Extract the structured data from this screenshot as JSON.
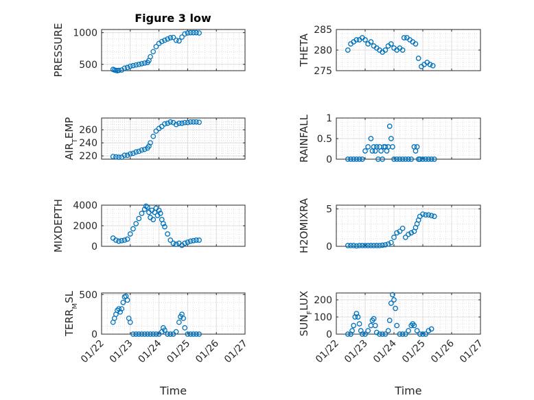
{
  "figure": {
    "title": "Figure 3 low",
    "marker_color": "#0072BD"
  },
  "chart_data": [
    {
      "type": "scatter",
      "ylabel": "PRESSURE",
      "ylim": [
        400,
        1050
      ],
      "yticks": [
        500,
        1000
      ],
      "xlim": [
        "01/22",
        "01/27"
      ],
      "grid": true,
      "points": [
        [
          0.4,
          420
        ],
        [
          0.45,
          410
        ],
        [
          0.5,
          405
        ],
        [
          0.55,
          400
        ],
        [
          0.6,
          405
        ],
        [
          0.7,
          410
        ],
        [
          0.8,
          440
        ],
        [
          0.9,
          450
        ],
        [
          1.0,
          470
        ],
        [
          1.1,
          480
        ],
        [
          1.2,
          490
        ],
        [
          1.3,
          500
        ],
        [
          1.4,
          510
        ],
        [
          1.5,
          520
        ],
        [
          1.6,
          530
        ],
        [
          1.65,
          560
        ],
        [
          1.7,
          620
        ],
        [
          1.8,
          700
        ],
        [
          1.9,
          780
        ],
        [
          2.0,
          830
        ],
        [
          2.1,
          860
        ],
        [
          2.2,
          880
        ],
        [
          2.3,
          900
        ],
        [
          2.4,
          920
        ],
        [
          2.5,
          925
        ],
        [
          2.6,
          880
        ],
        [
          2.7,
          870
        ],
        [
          2.8,
          930
        ],
        [
          2.9,
          980
        ],
        [
          3.0,
          995
        ],
        [
          3.1,
          1000
        ],
        [
          3.2,
          1000
        ],
        [
          3.3,
          1000
        ],
        [
          3.4,
          995
        ]
      ]
    },
    {
      "type": "scatter",
      "ylabel": "THETA",
      "ylim": [
        275,
        285
      ],
      "yticks": [
        275,
        280,
        285
      ],
      "xlim": [
        "01/22",
        "01/27"
      ],
      "grid": true,
      "points": [
        [
          0.4,
          280
        ],
        [
          0.5,
          281.5
        ],
        [
          0.6,
          282
        ],
        [
          0.7,
          282.5
        ],
        [
          0.8,
          282.5
        ],
        [
          0.9,
          283
        ],
        [
          1.0,
          282.5
        ],
        [
          1.1,
          281.5
        ],
        [
          1.2,
          282
        ],
        [
          1.3,
          281
        ],
        [
          1.4,
          280.5
        ],
        [
          1.5,
          280
        ],
        [
          1.6,
          279.5
        ],
        [
          1.7,
          280
        ],
        [
          1.8,
          281
        ],
        [
          1.9,
          281.5
        ],
        [
          2.0,
          280.5
        ],
        [
          2.1,
          280
        ],
        [
          2.2,
          280.5
        ],
        [
          2.3,
          280
        ],
        [
          2.35,
          283
        ],
        [
          2.45,
          283
        ],
        [
          2.55,
          282.5
        ],
        [
          2.65,
          282
        ],
        [
          2.75,
          281.5
        ],
        [
          2.85,
          278
        ],
        [
          2.95,
          276
        ],
        [
          3.05,
          276.5
        ],
        [
          3.15,
          277
        ],
        [
          3.25,
          276.5
        ],
        [
          3.35,
          276.2
        ]
      ]
    },
    {
      "type": "scatter",
      "ylabel": "AIR_TEMP",
      "ylim": [
        215,
        278
      ],
      "yticks": [
        220,
        240,
        260
      ],
      "xlim": [
        "01/22",
        "01/27"
      ],
      "grid": true,
      "points": [
        [
          0.4,
          219
        ],
        [
          0.5,
          218.5
        ],
        [
          0.6,
          218
        ],
        [
          0.7,
          218
        ],
        [
          0.8,
          221
        ],
        [
          0.9,
          221
        ],
        [
          1.0,
          223
        ],
        [
          1.1,
          224
        ],
        [
          1.2,
          226
        ],
        [
          1.3,
          227
        ],
        [
          1.4,
          229
        ],
        [
          1.5,
          230
        ],
        [
          1.6,
          232
        ],
        [
          1.65,
          235
        ],
        [
          1.7,
          240
        ],
        [
          1.8,
          250
        ],
        [
          1.9,
          258
        ],
        [
          2.0,
          262
        ],
        [
          2.1,
          265
        ],
        [
          2.2,
          269
        ],
        [
          2.3,
          270
        ],
        [
          2.4,
          272
        ],
        [
          2.5,
          271
        ],
        [
          2.6,
          268
        ],
        [
          2.7,
          270
        ],
        [
          2.8,
          270
        ],
        [
          2.9,
          271
        ],
        [
          3.0,
          271
        ],
        [
          3.1,
          272
        ],
        [
          3.2,
          272
        ],
        [
          3.3,
          272
        ],
        [
          3.4,
          271.5
        ]
      ]
    },
    {
      "type": "scatter",
      "ylabel": "RAINFALL",
      "ylim": [
        0,
        1
      ],
      "yticks": [
        0,
        0.5,
        1
      ],
      "xlim": [
        "01/22",
        "01/27"
      ],
      "grid": true,
      "points": [
        [
          0.4,
          0
        ],
        [
          0.5,
          0
        ],
        [
          0.6,
          0
        ],
        [
          0.7,
          0
        ],
        [
          0.8,
          0
        ],
        [
          0.9,
          0
        ],
        [
          1.0,
          0.2
        ],
        [
          1.1,
          0.3
        ],
        [
          1.2,
          0.5
        ],
        [
          1.25,
          0.2
        ],
        [
          1.3,
          0.3
        ],
        [
          1.35,
          0.2
        ],
        [
          1.4,
          0.3
        ],
        [
          1.45,
          0
        ],
        [
          1.5,
          0.3
        ],
        [
          1.55,
          0.2
        ],
        [
          1.6,
          0
        ],
        [
          1.65,
          0.3
        ],
        [
          1.7,
          0.3
        ],
        [
          1.75,
          0.2
        ],
        [
          1.8,
          0.3
        ],
        [
          1.85,
          0.8
        ],
        [
          1.9,
          0.5
        ],
        [
          1.95,
          0.3
        ],
        [
          2.0,
          0
        ],
        [
          2.1,
          0
        ],
        [
          2.2,
          0
        ],
        [
          2.3,
          0
        ],
        [
          2.4,
          0
        ],
        [
          2.5,
          0
        ],
        [
          2.6,
          0
        ],
        [
          2.7,
          0.3
        ],
        [
          2.75,
          0.2
        ],
        [
          2.8,
          0.3
        ],
        [
          2.85,
          0
        ],
        [
          2.9,
          0
        ],
        [
          3.0,
          0
        ],
        [
          3.1,
          0
        ],
        [
          3.2,
          0
        ],
        [
          3.3,
          0
        ],
        [
          3.4,
          0
        ]
      ]
    },
    {
      "type": "scatter",
      "ylabel": "MIXDEPTH",
      "ylim": [
        0,
        4000
      ],
      "yticks": [
        0,
        2000,
        4000
      ],
      "xlim": [
        "01/22",
        "01/27"
      ],
      "grid": true,
      "points": [
        [
          0.4,
          800
        ],
        [
          0.5,
          600
        ],
        [
          0.6,
          500
        ],
        [
          0.7,
          550
        ],
        [
          0.8,
          600
        ],
        [
          0.9,
          700
        ],
        [
          1.0,
          1200
        ],
        [
          1.1,
          1700
        ],
        [
          1.2,
          2200
        ],
        [
          1.3,
          2700
        ],
        [
          1.4,
          3200
        ],
        [
          1.5,
          3600
        ],
        [
          1.55,
          3900
        ],
        [
          1.6,
          3800
        ],
        [
          1.65,
          3300
        ],
        [
          1.7,
          2800
        ],
        [
          1.75,
          3500
        ],
        [
          1.8,
          2600
        ],
        [
          1.85,
          3300
        ],
        [
          1.9,
          3700
        ],
        [
          1.95,
          3000
        ],
        [
          2.0,
          3500
        ],
        [
          2.05,
          3200
        ],
        [
          2.1,
          2600
        ],
        [
          2.15,
          2200
        ],
        [
          2.2,
          1900
        ],
        [
          2.3,
          1200
        ],
        [
          2.4,
          600
        ],
        [
          2.5,
          300
        ],
        [
          2.6,
          200
        ],
        [
          2.7,
          300
        ],
        [
          2.8,
          100
        ],
        [
          2.9,
          300
        ],
        [
          3.0,
          400
        ],
        [
          3.1,
          500
        ],
        [
          3.2,
          550
        ],
        [
          3.3,
          600
        ],
        [
          3.4,
          600
        ]
      ]
    },
    {
      "type": "scatter",
      "ylabel": "H2OMIXRA",
      "ylim": [
        0,
        5.5
      ],
      "yticks": [
        0,
        5
      ],
      "xlim": [
        "01/22",
        "01/27"
      ],
      "grid": true,
      "points": [
        [
          0.4,
          0.1
        ],
        [
          0.5,
          0.1
        ],
        [
          0.6,
          0.1
        ],
        [
          0.7,
          0.05
        ],
        [
          0.8,
          0.1
        ],
        [
          0.9,
          0.1
        ],
        [
          1.0,
          0.1
        ],
        [
          1.1,
          0.1
        ],
        [
          1.2,
          0.1
        ],
        [
          1.3,
          0.1
        ],
        [
          1.4,
          0.1
        ],
        [
          1.5,
          0.1
        ],
        [
          1.6,
          0.15
        ],
        [
          1.7,
          0.2
        ],
        [
          1.8,
          0.3
        ],
        [
          1.9,
          0.5
        ],
        [
          2.0,
          1.2
        ],
        [
          2.1,
          1.8
        ],
        [
          2.2,
          2.0
        ],
        [
          2.3,
          2.4
        ],
        [
          2.4,
          1.2
        ],
        [
          2.5,
          1.6
        ],
        [
          2.6,
          1.8
        ],
        [
          2.7,
          2.0
        ],
        [
          2.75,
          2.5
        ],
        [
          2.8,
          3.0
        ],
        [
          2.85,
          3.5
        ],
        [
          2.9,
          4.0
        ],
        [
          3.0,
          4.3
        ],
        [
          3.1,
          4.2
        ],
        [
          3.2,
          4.2
        ],
        [
          3.3,
          4.1
        ],
        [
          3.4,
          4.0
        ]
      ]
    },
    {
      "type": "scatter",
      "ylabel": "TERR_MSL",
      "ylim": [
        0,
        520
      ],
      "yticks": [
        0,
        500
      ],
      "xlim": [
        "01/22",
        "01/27"
      ],
      "xticks": [
        "01/22",
        "01/23",
        "01/24",
        "01/25",
        "01/26",
        "01/27"
      ],
      "xlabel": "Time",
      "grid": true,
      "points": [
        [
          0.4,
          150
        ],
        [
          0.45,
          200
        ],
        [
          0.5,
          250
        ],
        [
          0.55,
          300
        ],
        [
          0.6,
          320
        ],
        [
          0.65,
          280
        ],
        [
          0.7,
          320
        ],
        [
          0.75,
          400
        ],
        [
          0.8,
          470
        ],
        [
          0.85,
          480
        ],
        [
          0.9,
          430
        ],
        [
          0.95,
          200
        ],
        [
          1.0,
          150
        ],
        [
          1.1,
          0
        ],
        [
          1.2,
          0
        ],
        [
          1.3,
          0
        ],
        [
          1.4,
          0
        ],
        [
          1.5,
          0
        ],
        [
          1.6,
          0
        ],
        [
          1.7,
          0
        ],
        [
          1.8,
          0
        ],
        [
          1.9,
          0
        ],
        [
          2.0,
          0
        ],
        [
          2.1,
          30
        ],
        [
          2.15,
          80
        ],
        [
          2.2,
          50
        ],
        [
          2.3,
          0
        ],
        [
          2.4,
          0
        ],
        [
          2.5,
          0
        ],
        [
          2.6,
          30
        ],
        [
          2.7,
          150
        ],
        [
          2.75,
          220
        ],
        [
          2.8,
          250
        ],
        [
          2.85,
          200
        ],
        [
          2.9,
          80
        ],
        [
          3.0,
          0
        ],
        [
          3.1,
          0
        ],
        [
          3.2,
          0
        ],
        [
          3.3,
          0
        ],
        [
          3.4,
          0
        ]
      ]
    },
    {
      "type": "scatter",
      "ylabel": "SUN_FLUX",
      "ylim": [
        0,
        240
      ],
      "yticks": [
        0,
        100,
        200
      ],
      "xlim": [
        "01/22",
        "01/27"
      ],
      "xticks": [
        "01/22",
        "01/23",
        "01/24",
        "01/25",
        "01/26",
        "01/27"
      ],
      "xlabel": "Time",
      "grid": true,
      "points": [
        [
          0.4,
          0
        ],
        [
          0.5,
          0
        ],
        [
          0.55,
          20
        ],
        [
          0.6,
          50
        ],
        [
          0.65,
          100
        ],
        [
          0.7,
          120
        ],
        [
          0.75,
          100
        ],
        [
          0.8,
          60
        ],
        [
          0.85,
          20
        ],
        [
          0.9,
          0
        ],
        [
          1.0,
          0
        ],
        [
          1.1,
          20
        ],
        [
          1.2,
          50
        ],
        [
          1.25,
          80
        ],
        [
          1.3,
          90
        ],
        [
          1.35,
          50
        ],
        [
          1.4,
          10
        ],
        [
          1.5,
          0
        ],
        [
          1.6,
          0
        ],
        [
          1.7,
          0
        ],
        [
          1.8,
          20
        ],
        [
          1.85,
          80
        ],
        [
          1.9,
          180
        ],
        [
          1.95,
          230
        ],
        [
          2.0,
          200
        ],
        [
          2.05,
          150
        ],
        [
          2.1,
          50
        ],
        [
          2.2,
          0
        ],
        [
          2.3,
          0
        ],
        [
          2.4,
          0
        ],
        [
          2.5,
          20
        ],
        [
          2.6,
          50
        ],
        [
          2.65,
          60
        ],
        [
          2.7,
          50
        ],
        [
          2.8,
          20
        ],
        [
          2.9,
          0
        ],
        [
          3.0,
          0
        ],
        [
          3.1,
          0
        ],
        [
          3.2,
          20
        ],
        [
          3.3,
          30
        ]
      ]
    }
  ]
}
